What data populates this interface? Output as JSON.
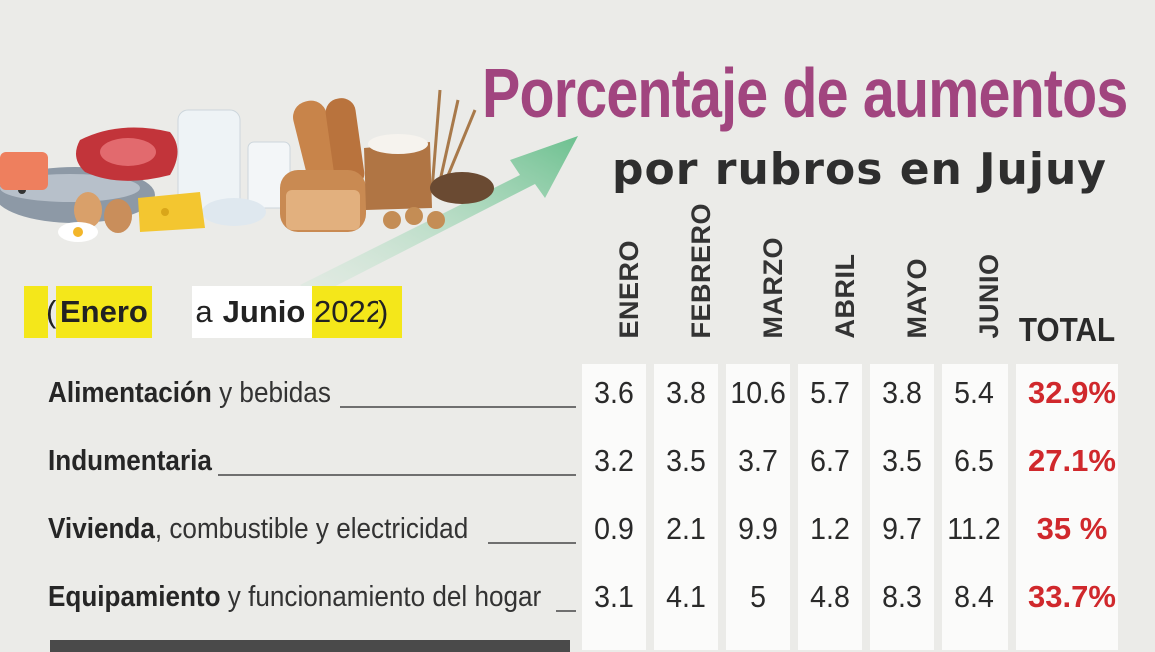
{
  "title": "Porcentaje de aumentos",
  "subtitle": "por rubros en Jujuy",
  "period": {
    "open": "(",
    "start": "Enero",
    "connector": "a",
    "end": "Junio",
    "year": "2022",
    "close": ")"
  },
  "colors": {
    "title": "#a1457f",
    "highlight": "#f4e71a",
    "total": "#d0282c",
    "arrow": "#7ec89a"
  },
  "illustration": {
    "icons": [
      "fish-icon",
      "meat-icon",
      "milk-icon",
      "eggs-icon",
      "cheese-icon",
      "flour-icon",
      "bread-icon",
      "wheat-icon",
      "cookies-icon",
      "growth-arrow-icon"
    ]
  },
  "chart_data": {
    "type": "table",
    "columns": [
      "ENERO",
      "FEBRERO",
      "MARZO",
      "ABRIL",
      "MAYO",
      "JUNIO",
      "TOTAL"
    ],
    "rows": [
      {
        "bold": "Alimentación",
        "rest": " y bebidas",
        "values": [
          "3.6",
          "3.8",
          "10.6",
          "5.7",
          "3.8",
          "5.4"
        ],
        "total": "32.9%"
      },
      {
        "bold": "Indumentaria",
        "rest": "",
        "values": [
          "3.2",
          "3.5",
          "3.7",
          "6.7",
          "3.5",
          "6.5"
        ],
        "total": "27.1%"
      },
      {
        "bold": "Vivienda",
        "rest": ", combustible y electricidad",
        "values": [
          "0.9",
          "2.1",
          "9.9",
          "1.2",
          "9.7",
          "11.2"
        ],
        "total": "35  %"
      },
      {
        "bold": "Equipamiento",
        "rest": " y funcionamiento del hogar",
        "values": [
          "3.1",
          "4.1",
          "5",
          "4.8",
          "8.3",
          "8.4"
        ],
        "total": "33.7%"
      }
    ]
  }
}
